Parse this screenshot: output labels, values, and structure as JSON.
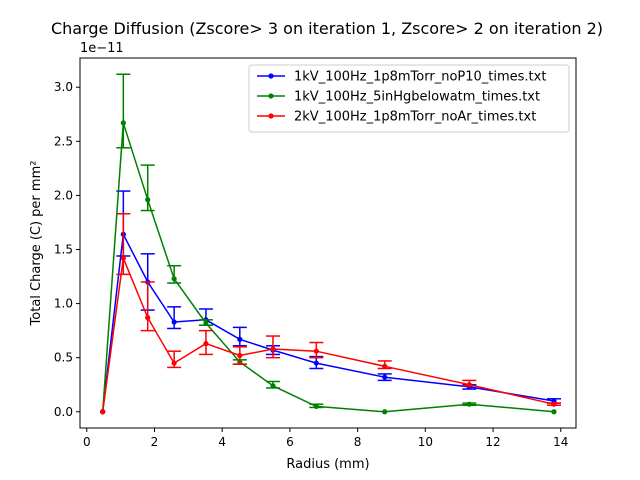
{
  "chart_data": {
    "type": "line",
    "title": "Charge Diffusion (Zscore> 3 on iteration 1, Zscore> 2 on iteration 2)",
    "xlabel": "Radius (mm)",
    "ylabel": "Total Charge (C) per mm²",
    "y_multiplier_text": "1e−11",
    "xlim": [
      -0.2,
      14.45
    ],
    "ylim": [
      -0.15,
      3.27
    ],
    "x_ticks": [
      0,
      2,
      4,
      6,
      8,
      10,
      12,
      14
    ],
    "x_tick_labels": [
      "0",
      "2",
      "4",
      "6",
      "8",
      "10",
      "12",
      "14"
    ],
    "y_ticks": [
      0.0,
      0.5,
      1.0,
      1.5,
      2.0,
      2.5,
      3.0
    ],
    "y_tick_labels": [
      "0.0",
      "0.5",
      "1.0",
      "1.5",
      "2.0",
      "2.5",
      "3.0"
    ],
    "grid": false,
    "legend_position": "top-right",
    "series": [
      {
        "name": "1kV_100Hz_1p8mTorr_noP10_times.txt",
        "color": "#0000ff",
        "x": [
          0.47,
          1.08,
          1.8,
          2.58,
          3.52,
          4.52,
          5.5,
          6.78,
          8.8,
          11.3,
          13.8
        ],
        "y": [
          0.0,
          1.64,
          1.2,
          0.83,
          0.85,
          0.67,
          0.57,
          0.45,
          0.32,
          0.23,
          0.1
        ],
        "err_low": [
          0.0,
          0.2,
          0.26,
          0.06,
          0.05,
          0.06,
          0.04,
          0.05,
          0.03,
          0.02,
          0.02
        ],
        "err_high": [
          0.0,
          0.4,
          0.26,
          0.14,
          0.1,
          0.11,
          0.04,
          0.06,
          0.03,
          0.02,
          0.02
        ]
      },
      {
        "name": "1kV_100Hz_5inHgbelowatm_times.txt",
        "color": "#008000",
        "x": [
          0.47,
          1.08,
          1.8,
          2.58,
          3.52,
          4.52,
          5.5,
          6.78,
          8.8,
          11.3,
          13.8
        ],
        "y": [
          0.0,
          2.67,
          1.96,
          1.23,
          0.82,
          0.46,
          0.24,
          0.05,
          0.0,
          0.07,
          0.0
        ],
        "err_low": [
          0.0,
          0.23,
          0.1,
          0.04,
          0.02,
          0.02,
          0.02,
          0.01,
          0.0,
          0.01,
          0.0
        ],
        "err_high": [
          0.0,
          0.45,
          0.32,
          0.12,
          0.03,
          0.02,
          0.04,
          0.02,
          0.0,
          0.01,
          0.0
        ]
      },
      {
        "name": "2kV_100Hz_1p8mTorr_noAr_times.txt",
        "color": "#ff0000",
        "x": [
          0.47,
          1.08,
          1.8,
          2.58,
          3.52,
          4.52,
          5.5,
          6.78,
          8.8,
          11.3,
          13.8
        ],
        "y": [
          0.0,
          1.42,
          0.87,
          0.45,
          0.63,
          0.52,
          0.58,
          0.56,
          0.42,
          0.25,
          0.07
        ],
        "err_low": [
          0.0,
          0.15,
          0.12,
          0.04,
          0.1,
          0.08,
          0.08,
          0.06,
          0.02,
          0.01,
          0.01
        ],
        "err_high": [
          0.0,
          0.41,
          0.33,
          0.11,
          0.12,
          0.08,
          0.12,
          0.08,
          0.05,
          0.04,
          0.01
        ]
      }
    ]
  }
}
